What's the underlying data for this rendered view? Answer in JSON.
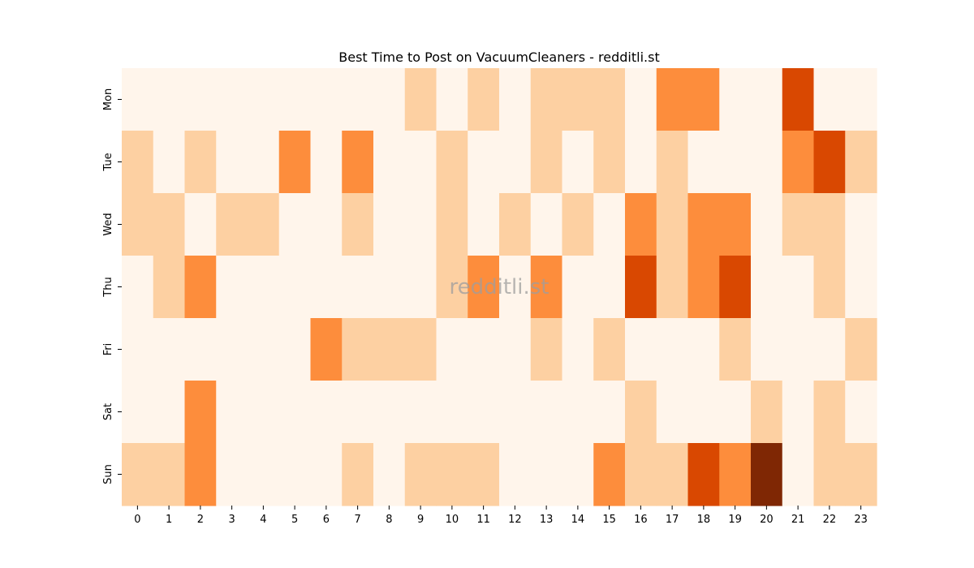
{
  "chart_data": {
    "type": "heatmap",
    "title": "Best Time to Post on VacuumCleaners - redditli.st",
    "watermark": "redditli.st",
    "xlabel": "",
    "ylabel": "",
    "x_categories": [
      "0",
      "1",
      "2",
      "3",
      "4",
      "5",
      "6",
      "7",
      "8",
      "9",
      "10",
      "11",
      "12",
      "13",
      "14",
      "15",
      "16",
      "17",
      "18",
      "19",
      "20",
      "21",
      "22",
      "23"
    ],
    "y_categories": [
      "Mon",
      "Tue",
      "Wed",
      "Thu",
      "Fri",
      "Sat",
      "Sun"
    ],
    "values": [
      [
        0,
        0,
        0,
        0,
        0,
        0,
        0,
        0,
        0,
        1,
        0,
        1,
        0,
        1,
        1,
        1,
        0,
        2,
        2,
        0,
        0,
        3,
        0,
        0
      ],
      [
        1,
        0,
        1,
        0,
        0,
        2,
        0,
        2,
        0,
        0,
        1,
        0,
        0,
        1,
        0,
        1,
        0,
        1,
        0,
        0,
        0,
        2,
        3,
        1
      ],
      [
        1,
        1,
        0,
        1,
        1,
        0,
        0,
        1,
        0,
        0,
        1,
        0,
        1,
        0,
        1,
        0,
        2,
        1,
        2,
        2,
        0,
        1,
        1,
        0
      ],
      [
        0,
        1,
        2,
        0,
        0,
        0,
        0,
        0,
        0,
        0,
        1,
        2,
        0,
        2,
        0,
        0,
        3,
        1,
        2,
        3,
        0,
        0,
        1,
        0
      ],
      [
        0,
        0,
        0,
        0,
        0,
        0,
        2,
        1,
        1,
        1,
        0,
        0,
        0,
        1,
        0,
        1,
        0,
        0,
        0,
        1,
        0,
        0,
        0,
        1
      ],
      [
        0,
        0,
        2,
        0,
        0,
        0,
        0,
        0,
        0,
        0,
        0,
        0,
        0,
        0,
        0,
        0,
        1,
        0,
        0,
        0,
        1,
        0,
        1,
        0
      ],
      [
        1,
        1,
        2,
        0,
        0,
        0,
        0,
        1,
        0,
        1,
        1,
        1,
        0,
        0,
        0,
        2,
        1,
        1,
        3,
        2,
        4,
        0,
        1,
        1
      ]
    ],
    "color_scale": [
      "#fff5eb",
      "#fdd0a2",
      "#fd8d3c",
      "#d94801",
      "#7f2704"
    ],
    "colorbar": false,
    "grid": false
  }
}
